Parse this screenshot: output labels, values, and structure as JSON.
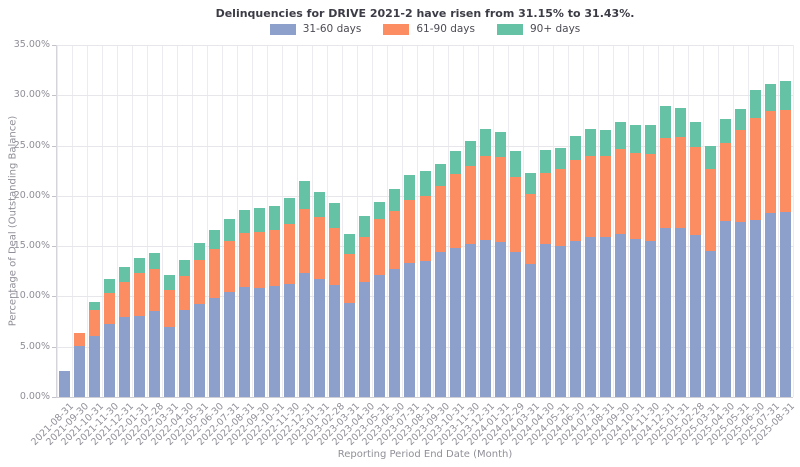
{
  "chart_data": {
    "type": "bar",
    "stacked": true,
    "title": "Delinquencies for DRIVE 2021-2 have risen from 31.15% to 31.43%.",
    "xlabel": "Reporting Period End Date (Month)",
    "ylabel": "Percentage of Deal (Outstanding Balance)",
    "ylim": [
      0,
      35
    ],
    "grid": true,
    "legend_position": "top-center",
    "yticks": [
      0,
      5,
      10,
      15,
      20,
      25,
      30,
      35
    ],
    "ytick_labels": [
      "0.00%",
      "5.00%",
      "10.00%",
      "15.00%",
      "20.00%",
      "25.00%",
      "30.00%",
      "35.00%"
    ],
    "categories": [
      "2021-08-31",
      "2021-09-30",
      "2021-10-31",
      "2021-11-30",
      "2021-12-31",
      "2022-01-31",
      "2022-02-28",
      "2022-03-31",
      "2022-04-30",
      "2022-05-31",
      "2022-06-30",
      "2022-07-31",
      "2022-08-31",
      "2022-09-30",
      "2022-10-31",
      "2022-11-30",
      "2022-12-31",
      "2023-01-31",
      "2023-02-28",
      "2023-03-31",
      "2023-04-30",
      "2023-05-31",
      "2023-06-30",
      "2023-07-31",
      "2023-08-31",
      "2023-09-30",
      "2023-10-31",
      "2023-11-30",
      "2023-12-31",
      "2024-01-31",
      "2024-02-29",
      "2024-03-31",
      "2024-04-30",
      "2024-05-31",
      "2024-06-30",
      "2024-07-31",
      "2024-08-31",
      "2024-09-30",
      "2024-10-31",
      "2024-11-30",
      "2024-12-31",
      "2025-01-31",
      "2025-02-28",
      "2025-03-31",
      "2025-04-30",
      "2025-05-31",
      "2025-06-30",
      "2025-07-31",
      "2025-08-31"
    ],
    "series": [
      {
        "name": "31-60 days",
        "key": "31-60-days",
        "color": "#8da0cb",
        "values": [
          2.6,
          5.1,
          6.1,
          7.25,
          8.0,
          8.05,
          8.6,
          6.95,
          8.65,
          9.2,
          9.85,
          10.4,
          10.9,
          10.85,
          11.0,
          11.25,
          12.35,
          11.75,
          11.1,
          9.3,
          11.4,
          12.1,
          12.7,
          13.3,
          13.5,
          14.4,
          14.8,
          15.2,
          15.65,
          15.4,
          14.4,
          13.2,
          15.25,
          15.05,
          15.5,
          15.9,
          15.9,
          16.2,
          15.7,
          15.55,
          16.8,
          16.85,
          16.15,
          14.5,
          17.5,
          17.4,
          17.55,
          18.25,
          18.35
        ]
      },
      {
        "name": "61-90 days",
        "key": "61-90-days",
        "color": "#fc8d62",
        "values": [
          0,
          1.3,
          2.6,
          3.1,
          3.45,
          4.25,
          4.1,
          3.65,
          3.4,
          4.4,
          4.85,
          5.1,
          5.4,
          5.55,
          5.6,
          6.0,
          6.3,
          6.15,
          5.7,
          4.9,
          4.5,
          5.6,
          5.8,
          6.3,
          6.5,
          6.55,
          7.35,
          7.8,
          8.3,
          8.45,
          7.5,
          6.95,
          7.0,
          7.6,
          8.05,
          8.1,
          8.1,
          8.45,
          8.55,
          8.65,
          9.0,
          9.05,
          8.7,
          8.2,
          7.75,
          9.1,
          10.2,
          10.2,
          10.2
        ]
      },
      {
        "name": "90+ days",
        "key": "90-plus-days",
        "color": "#66c2a5",
        "values": [
          0,
          0,
          0.7,
          1.4,
          1.45,
          1.5,
          1.6,
          1.55,
          1.55,
          1.7,
          1.95,
          2.2,
          2.25,
          2.4,
          2.35,
          2.55,
          2.8,
          2.5,
          2.45,
          2.0,
          2.1,
          1.7,
          2.2,
          2.5,
          2.5,
          2.2,
          2.3,
          2.5,
          2.65,
          2.45,
          2.55,
          2.15,
          2.35,
          2.1,
          2.4,
          2.65,
          2.5,
          2.7,
          2.8,
          2.8,
          3.1,
          2.8,
          2.45,
          2.3,
          2.4,
          2.1,
          2.75,
          2.7,
          2.88
        ]
      }
    ]
  }
}
